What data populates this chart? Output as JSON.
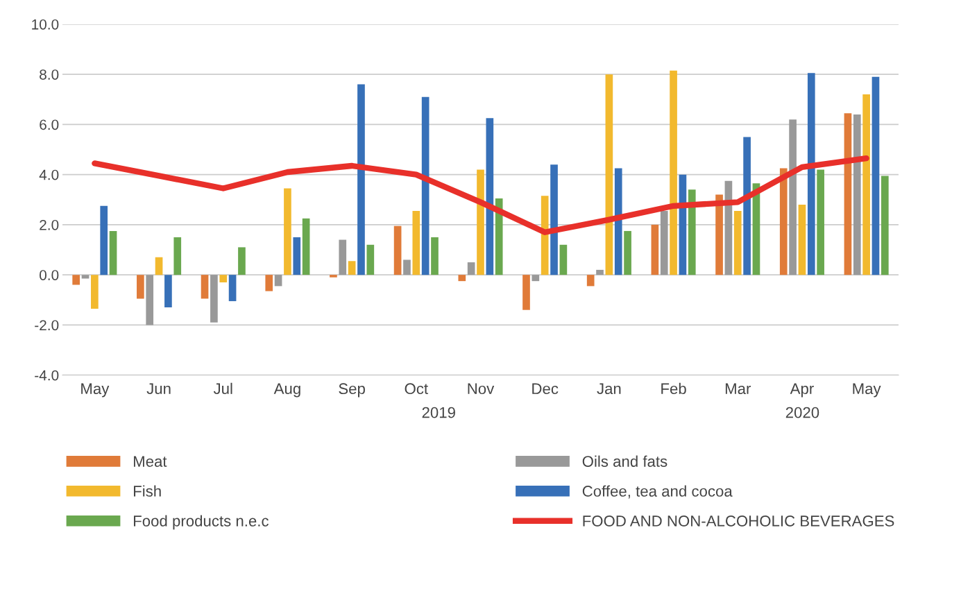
{
  "chart_data": {
    "type": "bar",
    "categories": [
      "May",
      "Jun",
      "Jul",
      "Aug",
      "Sep",
      "Oct",
      "Nov",
      "Dec",
      "Jan",
      "Feb",
      "Mar",
      "Apr",
      "May"
    ],
    "series": [
      {
        "name": "Meat",
        "color": "#e07b39",
        "values": [
          -0.4,
          -0.95,
          -0.95,
          -0.65,
          -0.1,
          1.95,
          -0.25,
          -1.4,
          -0.45,
          2.0,
          3.2,
          4.25,
          6.45
        ]
      },
      {
        "name": "Oils and fats",
        "color": "#999999",
        "values": [
          -0.15,
          -2.0,
          -1.9,
          -0.45,
          1.4,
          0.6,
          0.5,
          -0.25,
          0.2,
          2.55,
          3.75,
          6.2,
          6.4
        ]
      },
      {
        "name": "Fish",
        "color": "#f2b92e",
        "values": [
          -1.35,
          0.7,
          -0.3,
          3.45,
          0.55,
          2.55,
          4.2,
          3.15,
          8.0,
          8.15,
          2.55,
          2.8,
          7.2
        ]
      },
      {
        "name": "Coffee, tea and cocoa",
        "color": "#3770b8",
        "values": [
          2.75,
          -1.3,
          -1.05,
          1.5,
          7.6,
          7.1,
          6.25,
          4.4,
          4.25,
          4.0,
          5.5,
          8.05,
          7.9
        ]
      },
      {
        "name": "Food products n.e.c",
        "color": "#6aa84f",
        "values": [
          1.75,
          1.5,
          1.1,
          2.25,
          1.2,
          1.5,
          3.05,
          1.2,
          1.75,
          3.4,
          3.65,
          4.2,
          3.95
        ]
      },
      {
        "name": "FOOD AND NON-ALCOHOLIC BEVERAGES",
        "type": "line",
        "color": "#e8302a",
        "values": [
          4.45,
          3.95,
          3.45,
          4.1,
          4.35,
          4.0,
          2.9,
          1.7,
          2.2,
          2.75,
          2.9,
          4.3,
          4.65
        ]
      }
    ],
    "ylim": [
      -4,
      10
    ],
    "yticks": [
      {
        "value": -4,
        "label": "-4.0"
      },
      {
        "value": -2,
        "label": "-2.0"
      },
      {
        "value": 0,
        "label": "0.0"
      },
      {
        "value": 2,
        "label": "2.0"
      },
      {
        "value": 4,
        "label": "4.0"
      },
      {
        "value": 6,
        "label": "6.0"
      },
      {
        "value": 8,
        "label": "8.0"
      },
      {
        "value": 10,
        "label": "10.0"
      }
    ],
    "annotations": [
      "2019",
      "2020"
    ],
    "grid": "y",
    "legend": "bottom"
  }
}
